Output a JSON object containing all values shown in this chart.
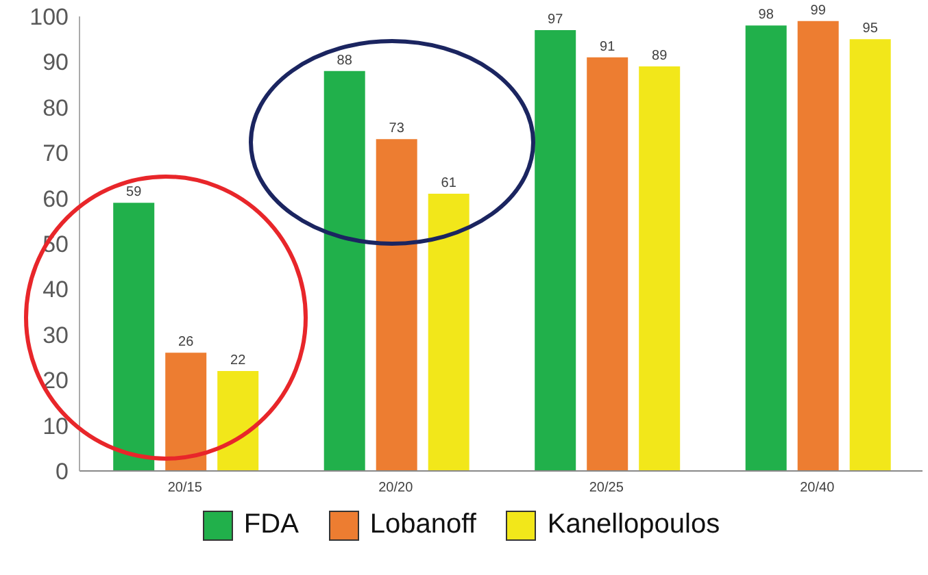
{
  "chart_data": {
    "type": "bar",
    "categories": [
      "20/15",
      "20/20",
      "20/25",
      "20/40"
    ],
    "series": [
      {
        "name": "FDA",
        "color": "#21b04b",
        "values": [
          59,
          88,
          97,
          98
        ]
      },
      {
        "name": "Lobanoff",
        "color": "#ed7d31",
        "values": [
          26,
          73,
          91,
          99
        ]
      },
      {
        "name": "Kanellopoulos",
        "color": "#f2e71a",
        "values": [
          22,
          61,
          89,
          95
        ]
      }
    ],
    "ylim": [
      0,
      100
    ],
    "yticks": [
      0,
      10,
      20,
      30,
      40,
      50,
      60,
      70,
      80,
      90,
      100
    ],
    "grid": false,
    "legend": "bottom",
    "data_labels": true
  }
}
